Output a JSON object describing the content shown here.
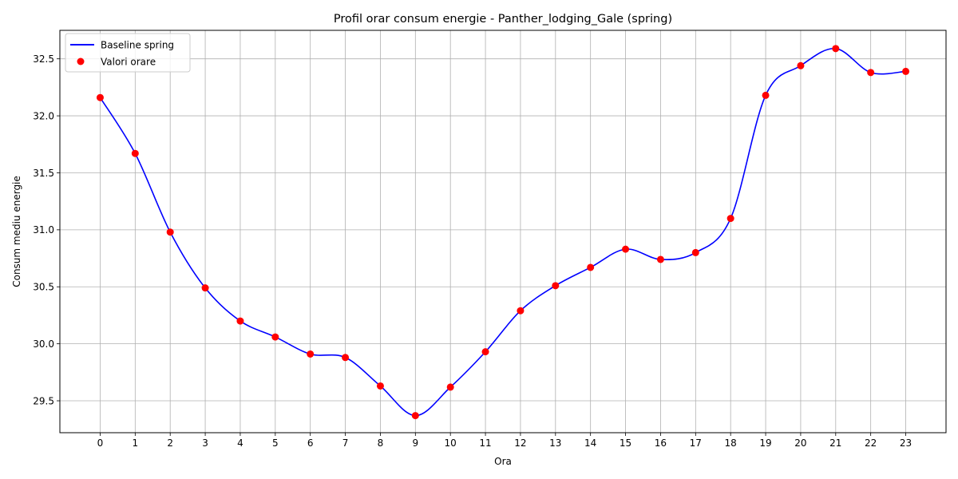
{
  "chart_data": {
    "type": "line",
    "title": "Profil orar consum energie - Panther_lodging_Gale (spring)",
    "xlabel": "Ora",
    "ylabel": "Consum mediu energie",
    "x": [
      0,
      1,
      2,
      3,
      4,
      5,
      6,
      7,
      8,
      9,
      10,
      11,
      12,
      13,
      14,
      15,
      16,
      17,
      18,
      19,
      20,
      21,
      22,
      23
    ],
    "xticks": [
      "0",
      "1",
      "2",
      "3",
      "4",
      "5",
      "6",
      "7",
      "8",
      "9",
      "10",
      "11",
      "12",
      "13",
      "14",
      "15",
      "16",
      "17",
      "18",
      "19",
      "20",
      "21",
      "22",
      "23"
    ],
    "yticks": [
      "29.5",
      "30.0",
      "30.5",
      "31.0",
      "31.5",
      "32.0",
      "32.5"
    ],
    "ytick_values": [
      29.5,
      30.0,
      30.5,
      31.0,
      31.5,
      32.0,
      32.5
    ],
    "xlim": [
      -1.15,
      24.15
    ],
    "ylim": [
      29.22,
      32.75
    ],
    "grid": true,
    "legend_position": "top-left",
    "series": [
      {
        "name": "Baseline spring",
        "kind": "smooth-line",
        "color": "#0000ff",
        "values": [
          32.16,
          31.67,
          30.98,
          30.49,
          30.2,
          30.06,
          29.91,
          29.88,
          29.63,
          29.37,
          29.62,
          29.93,
          30.29,
          30.51,
          30.67,
          30.83,
          30.74,
          30.8,
          31.1,
          32.18,
          32.44,
          32.59,
          32.38,
          32.39
        ]
      },
      {
        "name": "Valori orare",
        "kind": "scatter",
        "color": "#ff0000",
        "values": [
          32.16,
          31.67,
          30.98,
          30.49,
          30.2,
          30.06,
          29.91,
          29.88,
          29.63,
          29.37,
          29.62,
          29.93,
          30.29,
          30.51,
          30.67,
          30.83,
          30.74,
          30.8,
          31.1,
          32.18,
          32.44,
          32.59,
          32.38,
          32.39
        ]
      }
    ]
  }
}
